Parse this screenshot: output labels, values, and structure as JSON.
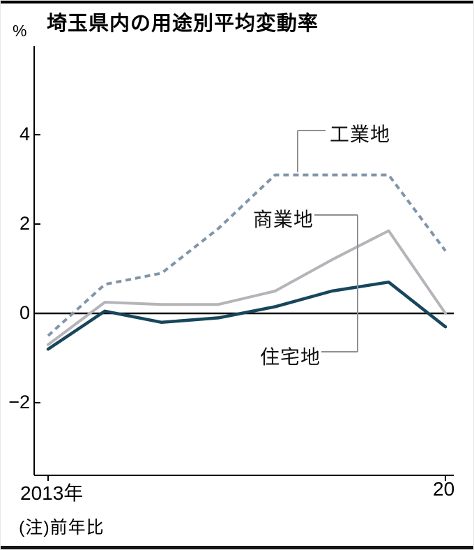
{
  "title": "埼玉県内の用途別平均変動率",
  "note": "(注)前年比",
  "chart_data": {
    "type": "line",
    "title": "埼玉県内の用途別平均変動率",
    "x": [
      2013,
      2014,
      2015,
      2016,
      2017,
      2018,
      2019,
      2020
    ],
    "x_tick_labels": [
      "2013年",
      "20"
    ],
    "ylabel": "%",
    "ylim": [
      -3.5,
      6
    ],
    "y_ticks": [
      4,
      2,
      0,
      -2
    ],
    "y_tick_labels": [
      "4",
      "2",
      "0",
      "−2"
    ],
    "grid": false,
    "zero_line": true,
    "series": [
      {
        "key": "industrial",
        "name": "工業地",
        "style": "dashed",
        "color": "#8095aa",
        "values": [
          -0.5,
          0.65,
          0.9,
          1.9,
          3.1,
          3.1,
          3.1,
          1.4
        ]
      },
      {
        "key": "commercial",
        "name": "商業地",
        "style": "solid",
        "color": "#b4b4b9",
        "values": [
          -0.7,
          0.25,
          0.2,
          0.2,
          0.5,
          1.2,
          1.85,
          0.0
        ]
      },
      {
        "key": "residential",
        "name": "住宅地",
        "style": "solid",
        "color": "#17465c",
        "values": [
          -0.8,
          0.05,
          -0.2,
          -0.1,
          0.15,
          0.5,
          0.7,
          -0.3
        ]
      }
    ],
    "axis_color": "#000000",
    "connector_color": "#8f8f8f"
  }
}
